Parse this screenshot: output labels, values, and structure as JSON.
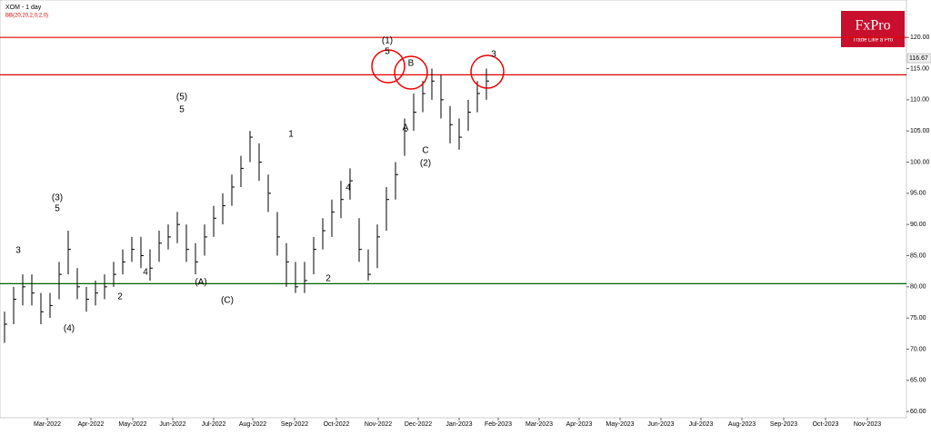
{
  "chart_data": {
    "type": "ohlc",
    "title": "XOM - 1 day",
    "subtitle": "BB(20,20,2,0,2,0)",
    "logo": "FxPro",
    "logo_tagline": "Trade Like a Pro",
    "color": "#000000",
    "high": [
      76,
      80,
      82,
      82,
      79,
      79,
      84,
      89,
      83,
      80,
      81,
      82,
      84,
      86,
      88,
      88,
      86,
      89,
      90,
      92,
      90,
      87,
      90,
      93,
      95,
      98,
      101,
      105,
      103,
      98,
      92,
      87,
      84,
      84,
      88,
      91,
      94,
      97,
      99,
      91,
      86,
      90,
      96,
      100,
      107,
      111,
      113,
      115,
      114,
      109,
      107,
      110,
      113,
      115
    ],
    "low": [
      71,
      74,
      77,
      77,
      74,
      75,
      78,
      82,
      78,
      76,
      77,
      78,
      80,
      82,
      84,
      83,
      81,
      84,
      86,
      87,
      84,
      82,
      85,
      88,
      90,
      93,
      96,
      100,
      97,
      92,
      85,
      80,
      79,
      79,
      82,
      86,
      88,
      91,
      94,
      84,
      81,
      83,
      89,
      94,
      101,
      105,
      108,
      110,
      107,
      103,
      102,
      105,
      108,
      110
    ],
    "close": [
      74,
      78,
      80,
      79,
      76,
      77,
      82,
      86,
      80,
      78,
      79,
      80,
      82,
      84,
      86,
      85,
      83,
      87,
      88,
      90,
      86,
      84,
      88,
      91,
      93,
      96,
      99,
      104,
      100,
      95,
      88,
      84,
      80,
      81,
      86,
      89,
      92,
      94,
      97,
      86,
      82,
      88,
      94,
      98,
      105,
      108,
      111,
      113,
      110,
      106,
      104,
      108,
      111,
      113
    ],
    "categories": [
      "Mar-2022",
      "Apr-2022",
      "May-2022",
      "Jun-2022",
      "Jul-2022",
      "Aug-2022",
      "Sep-2022",
      "Oct-2022",
      "Nov-2022",
      "Dec-2022",
      "Jan-2023",
      "Feb-2023",
      "Mar-2023",
      "Apr-2023",
      "May-2023",
      "Jun-2023",
      "Jul-2023",
      "Aug-2023",
      "Sep-2023",
      "Oct-2023",
      "Nov-2023"
    ],
    "ylim": [
      59,
      126
    ],
    "yticks": [
      {
        "value": 60,
        "label": "60.00"
      },
      {
        "value": 65,
        "label": "65.00"
      },
      {
        "value": 70,
        "label": "70.00"
      },
      {
        "value": 75,
        "label": "75.00"
      },
      {
        "value": 80,
        "label": "80.00"
      },
      {
        "value": 85,
        "label": "85.00"
      },
      {
        "value": 90,
        "label": "90.00"
      },
      {
        "value": 95,
        "label": "95.00"
      },
      {
        "value": 100,
        "label": "100.00"
      },
      {
        "value": 105,
        "label": "105.00"
      },
      {
        "value": 110,
        "label": "110.00"
      },
      {
        "value": 115,
        "label": "115.00"
      },
      {
        "value": 120,
        "label": "120.00"
      }
    ],
    "last_price": 116.67,
    "levels": [
      {
        "value": 120,
        "color": "#e00000"
      },
      {
        "value": 114,
        "color": "#e00000"
      },
      {
        "value": 80.5,
        "color": "#006400"
      }
    ],
    "annotations": [
      "(1)",
      "5",
      "B",
      "C",
      "(2)",
      "A",
      "(3)",
      "5",
      "(5)",
      "5",
      "(A)",
      "(C)",
      "(4)",
      "1",
      "2",
      "3",
      "4",
      "2",
      "4",
      "3"
    ]
  }
}
